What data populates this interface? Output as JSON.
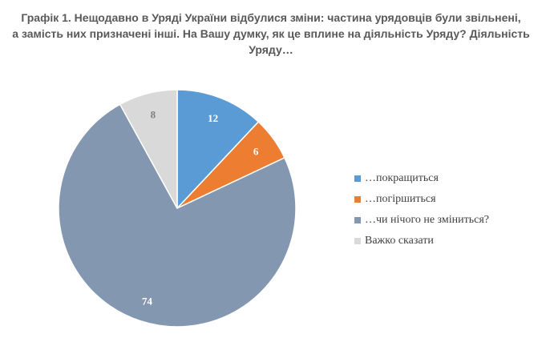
{
  "title_lines": [
    "Графік 1. Нещодавно в Уряді України відбулися зміни: частина урядовців були звільнені,",
    "а замість них призначені інші. На Вашу думку, як це вплине на діяльність Уряду? Діяльність",
    "Уряду…"
  ],
  "chart_data": {
    "type": "pie",
    "title": "Графік 1. Нещодавно в Уряді України відбулися зміни: частина урядовців були звільнені, а замість них призначені інші. На Вашу думку, як це вплине на діяльність Уряду? Діяльність Уряду…",
    "categories": [
      "…покращиться",
      "…погіршиться",
      "…чи нічого не зміниться?",
      "Важко сказати"
    ],
    "values": [
      12,
      6,
      74,
      8
    ],
    "data_labels": [
      "12",
      "6",
      "74",
      "8"
    ],
    "colors": [
      "#5b9bd5",
      "#ed7d31",
      "#8497b0",
      "#d9d9d9"
    ],
    "label_colors": [
      "#ffffff",
      "#ffffff",
      "#ffffff",
      "#7f7f7f"
    ],
    "start_angle": "12 o'clock, clockwise",
    "legend_position": "right"
  }
}
